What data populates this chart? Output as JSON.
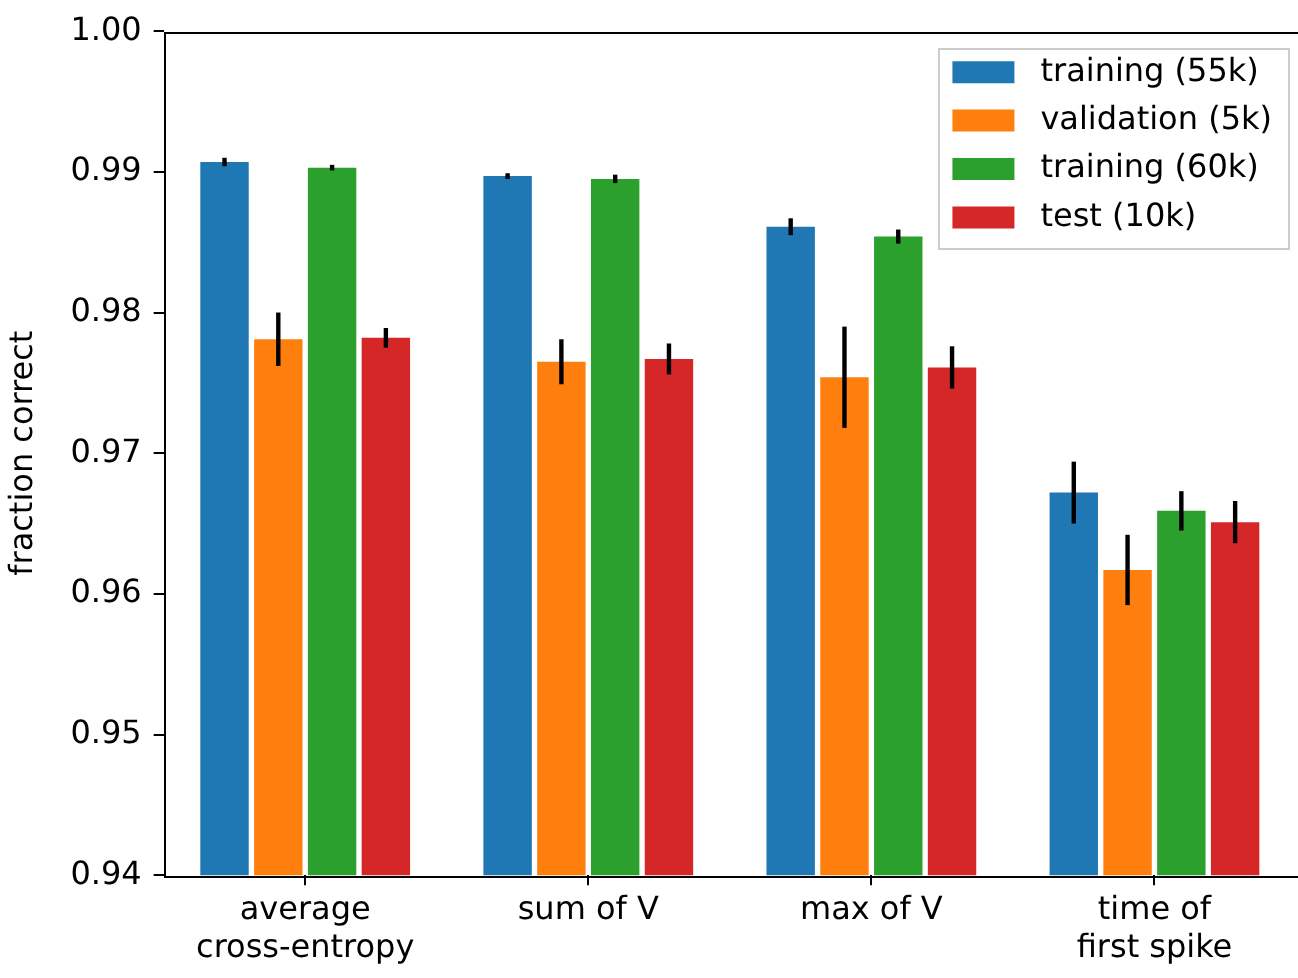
{
  "chart_data": {
    "type": "bar",
    "ylabel": "fraction correct",
    "categories": [
      "average\ncross-entropy",
      "sum of V",
      "max of V",
      "time of\nfirst spike"
    ],
    "series": [
      {
        "name": "training (55k)",
        "color": "#1f77b4",
        "values": [
          0.9907,
          0.9897,
          0.9861,
          0.9672
        ],
        "errors": [
          0.0003,
          0.0002,
          0.0006,
          0.0022
        ]
      },
      {
        "name": "validation (5k)",
        "color": "#ff7f0e",
        "values": [
          0.9781,
          0.9765,
          0.9754,
          0.9617
        ],
        "errors": [
          0.0019,
          0.0016,
          0.0036,
          0.0025
        ]
      },
      {
        "name": "training (60k)",
        "color": "#2ca02c",
        "values": [
          0.9903,
          0.9895,
          0.9854,
          0.9659
        ],
        "errors": [
          0.0002,
          0.0003,
          0.0005,
          0.0014
        ]
      },
      {
        "name": "test (10k)",
        "color": "#d62728",
        "values": [
          0.9782,
          0.9767,
          0.9761,
          0.9651
        ],
        "errors": [
          0.0007,
          0.0011,
          0.0015,
          0.0015
        ]
      }
    ],
    "ylim": [
      0.94,
      1.0
    ],
    "yticks": [
      0.94,
      0.95,
      0.96,
      0.97,
      0.98,
      0.99,
      {
        "value": 1.0,
        "label": "1.00"
      }
    ],
    "grid": false,
    "legend": "top right"
  }
}
